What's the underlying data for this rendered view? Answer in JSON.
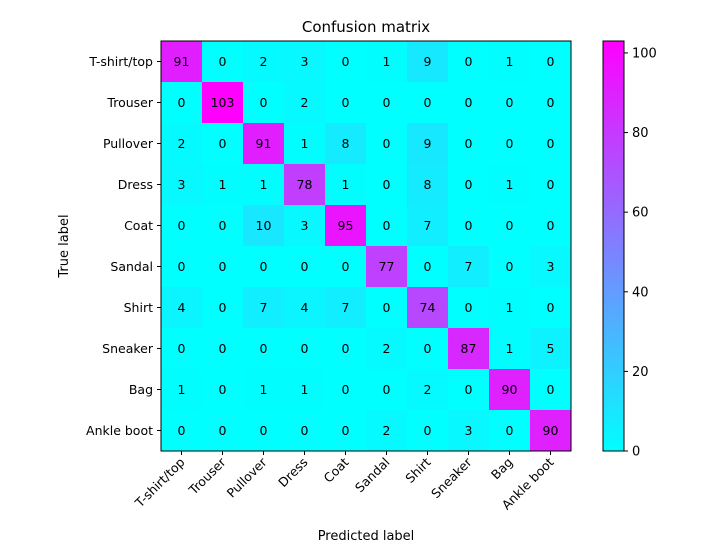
{
  "chart_data": {
    "type": "heatmap",
    "title": "Confusion matrix",
    "xlabel": "Predicted label",
    "ylabel": "True label",
    "x_categories": [
      "T-shirt/top",
      "Trouser",
      "Pullover",
      "Dress",
      "Coat",
      "Sandal",
      "Shirt",
      "Sneaker",
      "Bag",
      "Ankle boot"
    ],
    "y_categories": [
      "T-shirt/top",
      "Trouser",
      "Pullover",
      "Dress",
      "Coat",
      "Sandal",
      "Shirt",
      "Sneaker",
      "Bag",
      "Ankle boot"
    ],
    "values": [
      [
        91,
        0,
        2,
        3,
        0,
        1,
        9,
        0,
        1,
        0
      ],
      [
        0,
        103,
        0,
        2,
        0,
        0,
        0,
        0,
        0,
        0
      ],
      [
        2,
        0,
        91,
        1,
        8,
        0,
        9,
        0,
        0,
        0
      ],
      [
        3,
        1,
        1,
        78,
        1,
        0,
        8,
        0,
        1,
        0
      ],
      [
        0,
        0,
        10,
        3,
        95,
        0,
        7,
        0,
        0,
        0
      ],
      [
        0,
        0,
        0,
        0,
        0,
        77,
        0,
        7,
        0,
        3
      ],
      [
        4,
        0,
        7,
        4,
        7,
        0,
        74,
        0,
        1,
        0
      ],
      [
        0,
        0,
        0,
        0,
        0,
        2,
        0,
        87,
        1,
        5
      ],
      [
        1,
        0,
        1,
        1,
        0,
        0,
        2,
        0,
        90,
        0
      ],
      [
        0,
        0,
        0,
        0,
        0,
        2,
        0,
        3,
        0,
        90
      ]
    ],
    "colormap": "cool",
    "colormap_start": "#00ffff",
    "colormap_end": "#ff00ff",
    "vmin": 0,
    "vmax": 103,
    "colorbar_ticks": [
      0,
      20,
      40,
      60,
      80,
      100
    ],
    "x_tick_rotation": "45 degrees",
    "grid": false,
    "colorbar_position": "right"
  }
}
